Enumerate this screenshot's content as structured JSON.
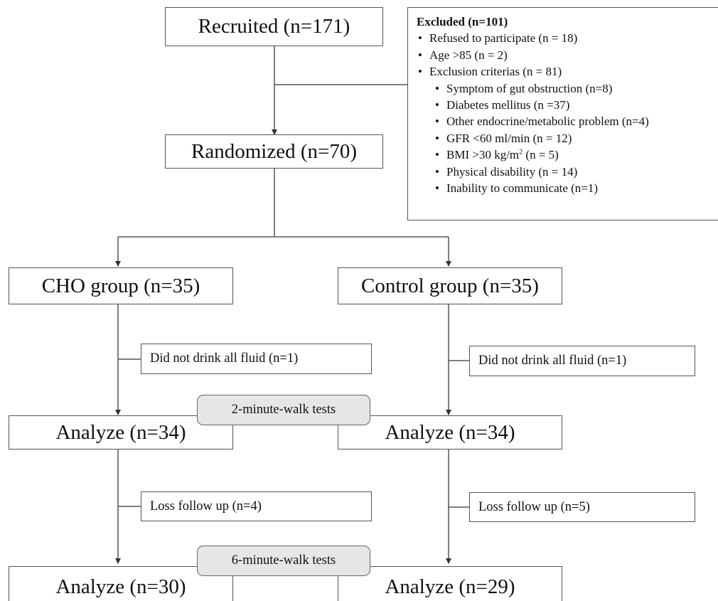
{
  "recruited": "Recruited (n=171)",
  "randomized": "Randomized (n=70)",
  "excluded": {
    "title": "Excluded (n=101)",
    "items": [
      "Refused to participate  (n = 18)",
      "Age >85 (n = 2)",
      "Exclusion criterias (n = 81)"
    ],
    "criteria": [
      "Symptom of gut obstruction (n=8)",
      "Diabetes mellitus (n =37)",
      "Other endocrine/metabolic problem (n=4)",
      "GFR <60 ml/min (n = 12)",
      "BMI >30 kg/m",
      "Physical disability (n = 14)",
      "Inability to communicate  (n=1)"
    ],
    "bmi_superscript": "2",
    "bmi_suffix": " (n = 5)"
  },
  "cho": {
    "group": "CHO group (n=35)",
    "did_not_drink": "Did not drink all fluid (n=1)",
    "analyze_1": "Analyze (n=34)",
    "loss": "Loss follow up (n=4)",
    "analyze_2": "Analyze (n=30)"
  },
  "control": {
    "group": "Control group (n=35)",
    "did_not_drink": "Did not drink all fluid (n=1)",
    "analyze_1": "Analyze (n=34)",
    "loss": "Loss follow up (n=5)",
    "analyze_2": "Analyze (n=29)"
  },
  "tests": {
    "two_minute": "2-minute-walk tests",
    "six_minute": "6-minute-walk tests"
  }
}
